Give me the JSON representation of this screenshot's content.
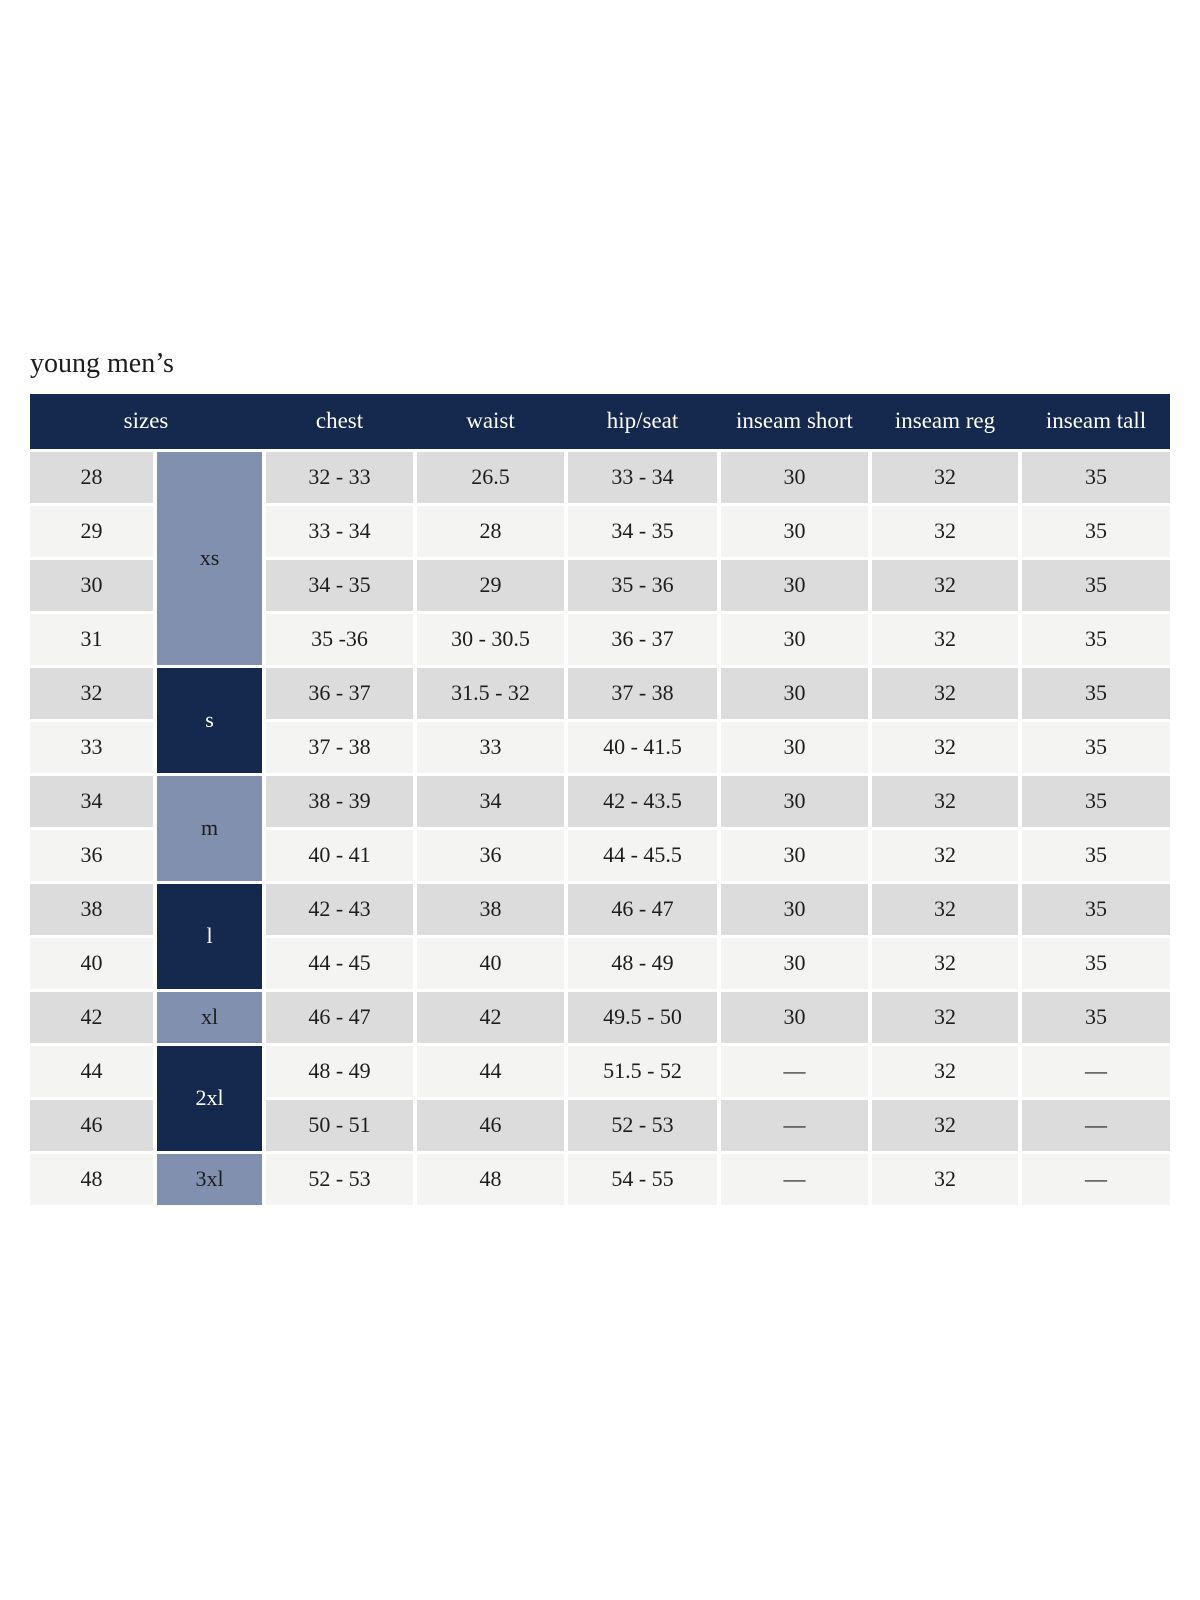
{
  "page": {
    "title": "young men’s"
  },
  "colors": {
    "navy": "#14294d",
    "slate": "#8190ae",
    "row_dark": "#dcdcdc",
    "row_light": "#f4f4f3",
    "text": "#1d1d1d",
    "header_text": "#ffffff",
    "page_bg": "#ffffff"
  },
  "table": {
    "header": {
      "sizes": "sizes",
      "chest": "chest",
      "waist": "waist",
      "hip_seat": "hip/seat",
      "inseam_short": "inseam short",
      "inseam_reg": "inseam reg",
      "inseam_tall": "inseam tall"
    },
    "groups": [
      {
        "label": "xs",
        "span": 4,
        "variant": "slate"
      },
      {
        "label": "s",
        "span": 2,
        "variant": "navy"
      },
      {
        "label": "m",
        "span": 2,
        "variant": "slate"
      },
      {
        "label": "l",
        "span": 2,
        "variant": "navy"
      },
      {
        "label": "xl",
        "span": 1,
        "variant": "slate"
      },
      {
        "label": "2xl",
        "span": 2,
        "variant": "navy"
      },
      {
        "label": "3xl",
        "span": 1,
        "variant": "slate"
      }
    ],
    "rows": [
      {
        "size": "28",
        "chest": "32 - 33",
        "waist": "26.5",
        "hip_seat": "33 - 34",
        "inseam_short": "30",
        "inseam_reg": "32",
        "inseam_tall": "35"
      },
      {
        "size": "29",
        "chest": "33 - 34",
        "waist": "28",
        "hip_seat": "34 - 35",
        "inseam_short": "30",
        "inseam_reg": "32",
        "inseam_tall": "35"
      },
      {
        "size": "30",
        "chest": "34 - 35",
        "waist": "29",
        "hip_seat": "35 - 36",
        "inseam_short": "30",
        "inseam_reg": "32",
        "inseam_tall": "35"
      },
      {
        "size": "31",
        "chest": "35 -36",
        "waist": "30 - 30.5",
        "hip_seat": "36 - 37",
        "inseam_short": "30",
        "inseam_reg": "32",
        "inseam_tall": "35"
      },
      {
        "size": "32",
        "chest": "36 - 37",
        "waist": "31.5 - 32",
        "hip_seat": "37 - 38",
        "inseam_short": "30",
        "inseam_reg": "32",
        "inseam_tall": "35"
      },
      {
        "size": "33",
        "chest": "37 - 38",
        "waist": "33",
        "hip_seat": "40 - 41.5",
        "inseam_short": "30",
        "inseam_reg": "32",
        "inseam_tall": "35"
      },
      {
        "size": "34",
        "chest": "38 - 39",
        "waist": "34",
        "hip_seat": "42 - 43.5",
        "inseam_short": "30",
        "inseam_reg": "32",
        "inseam_tall": "35"
      },
      {
        "size": "36",
        "chest": "40 - 41",
        "waist": "36",
        "hip_seat": "44 - 45.5",
        "inseam_short": "30",
        "inseam_reg": "32",
        "inseam_tall": "35"
      },
      {
        "size": "38",
        "chest": "42 - 43",
        "waist": "38",
        "hip_seat": "46 - 47",
        "inseam_short": "30",
        "inseam_reg": "32",
        "inseam_tall": "35"
      },
      {
        "size": "40",
        "chest": "44 - 45",
        "waist": "40",
        "hip_seat": "48 - 49",
        "inseam_short": "30",
        "inseam_reg": "32",
        "inseam_tall": "35"
      },
      {
        "size": "42",
        "chest": "46 - 47",
        "waist": "42",
        "hip_seat": "49.5 - 50",
        "inseam_short": "30",
        "inseam_reg": "32",
        "inseam_tall": "35"
      },
      {
        "size": "44",
        "chest": "48 - 49",
        "waist": "44",
        "hip_seat": "51.5 - 52",
        "inseam_short": "—",
        "inseam_reg": "32",
        "inseam_tall": "—"
      },
      {
        "size": "46",
        "chest": "50 - 51",
        "waist": "46",
        "hip_seat": "52 - 53",
        "inseam_short": "—",
        "inseam_reg": "32",
        "inseam_tall": "—"
      },
      {
        "size": "48",
        "chest": "52 - 53",
        "waist": "48",
        "hip_seat": "54 - 55",
        "inseam_short": "—",
        "inseam_reg": "32",
        "inseam_tall": "—"
      }
    ]
  }
}
